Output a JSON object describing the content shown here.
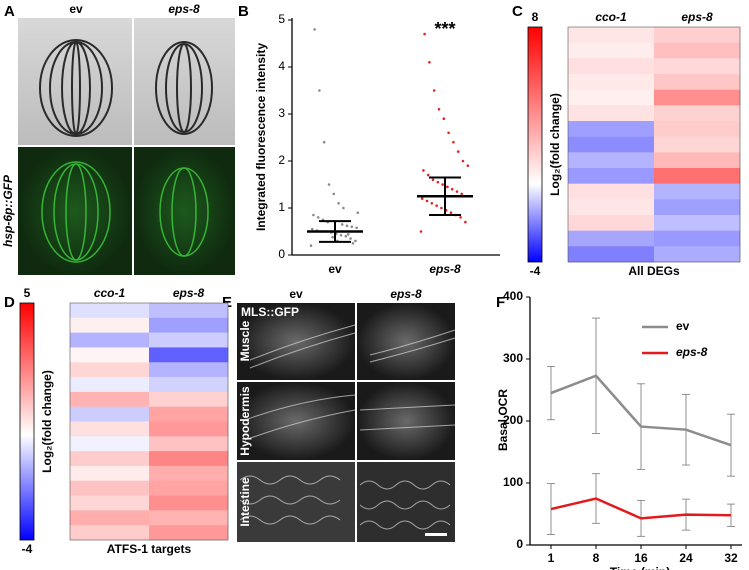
{
  "panel_labels": [
    "A",
    "B",
    "C",
    "D",
    "E",
    "F"
  ],
  "images": {
    "A": {
      "columns": [
        "ev",
        "eps-8"
      ],
      "row_label": "hsp-6p::GFP"
    },
    "E": {
      "columns": [
        "ev",
        "eps-8"
      ],
      "channel": "MLS::GFP",
      "rows": [
        "Muscle",
        "Hypodermis",
        "Intestine"
      ]
    }
  },
  "chart_data": [
    {
      "type": "dotplot",
      "ylabel": "Integrated fluorescence intensity",
      "categories": [
        "ev",
        "eps-8"
      ],
      "points": [
        [
          0.2,
          0.3,
          0.35,
          0.4,
          0.42,
          0.45,
          0.48,
          0.5,
          0.5,
          0.52,
          0.55,
          0.58,
          0.6,
          0.62,
          0.65,
          0.3,
          0.38,
          0.7,
          0.75,
          0.8,
          0.85,
          0.9,
          0.25,
          0.44,
          1.0,
          1.1,
          1.3,
          1.5,
          2.4,
          3.5,
          4.8
        ],
        [
          0.5,
          0.7,
          0.8,
          0.85,
          0.9,
          0.95,
          1.0,
          1.05,
          1.1,
          1.15,
          1.2,
          1.25,
          1.3,
          1.35,
          1.4,
          1.45,
          1.5,
          1.55,
          1.6,
          1.7,
          1.8,
          1.9,
          2.0,
          2.2,
          2.4,
          2.6,
          2.9,
          3.1,
          3.5,
          4.1,
          4.7
        ]
      ],
      "means": [
        0.5,
        1.25
      ],
      "errors": [
        0.22,
        0.4
      ],
      "point_colors": [
        "#8a8a8a",
        "#e02424"
      ],
      "annotation": "***",
      "ylim": [
        0,
        5
      ],
      "yticks": [
        0,
        1,
        2,
        3,
        4,
        5
      ]
    },
    {
      "type": "heatmap",
      "columns": [
        "cco-1",
        "eps-8"
      ],
      "xlabel": "All DEGs",
      "colorbar_label": "Log₂(fold change)",
      "clim": [
        -4,
        8
      ],
      "cticks": [
        8,
        -4
      ],
      "rows": [
        [
          0.8,
          1.5
        ],
        [
          0.6,
          2.0
        ],
        [
          1.0,
          1.2
        ],
        [
          0.7,
          1.8
        ],
        [
          0.5,
          3.5
        ],
        [
          0.9,
          1.4
        ],
        [
          -1.5,
          1.6
        ],
        [
          -1.8,
          1.3
        ],
        [
          -1.2,
          2.2
        ],
        [
          -1.6,
          4.5
        ],
        [
          1.0,
          -1.2
        ],
        [
          0.8,
          -1.5
        ],
        [
          1.2,
          -1.0
        ],
        [
          -1.4,
          -1.6
        ],
        [
          -2.0,
          -1.3
        ]
      ]
    },
    {
      "type": "heatmap",
      "columns": [
        "cco-1",
        "eps-8"
      ],
      "xlabel": "ATFS-1 targets",
      "colorbar_label": "Log₂(fold change)",
      "clim": [
        -4,
        5
      ],
      "cticks": [
        5,
        -4
      ],
      "rows": [
        [
          -0.5,
          -1.0
        ],
        [
          0.3,
          -1.5
        ],
        [
          -1.2,
          -0.8
        ],
        [
          0.2,
          -2.5
        ],
        [
          0.8,
          -1.2
        ],
        [
          -0.3,
          -0.7
        ],
        [
          1.5,
          0.9
        ],
        [
          -0.8,
          1.8
        ],
        [
          0.6,
          2.0
        ],
        [
          -0.2,
          1.2
        ],
        [
          1.0,
          2.4
        ],
        [
          0.4,
          1.6
        ],
        [
          1.2,
          1.8
        ],
        [
          0.8,
          2.2
        ],
        [
          1.6,
          1.5
        ],
        [
          1.0,
          2.0
        ]
      ]
    },
    {
      "type": "line",
      "xlabel": "Time (min)",
      "ylabel": "Basal OCR",
      "categories": [
        "1",
        "8",
        "16",
        "24",
        "32"
      ],
      "series": [
        {
          "name": "ev",
          "color": "#8c8c8c",
          "values": [
            245,
            273,
            191,
            186,
            161
          ],
          "errors": [
            43,
            93,
            69,
            57,
            50
          ]
        },
        {
          "name": "eps-8",
          "color": "#e31a1c",
          "values": [
            58,
            75,
            43,
            49,
            48
          ],
          "errors": [
            41,
            40,
            29,
            25,
            18
          ]
        }
      ],
      "ylim": [
        0,
        400
      ],
      "yticks": [
        0,
        100,
        200,
        300,
        400
      ],
      "legend": "upper right"
    }
  ]
}
